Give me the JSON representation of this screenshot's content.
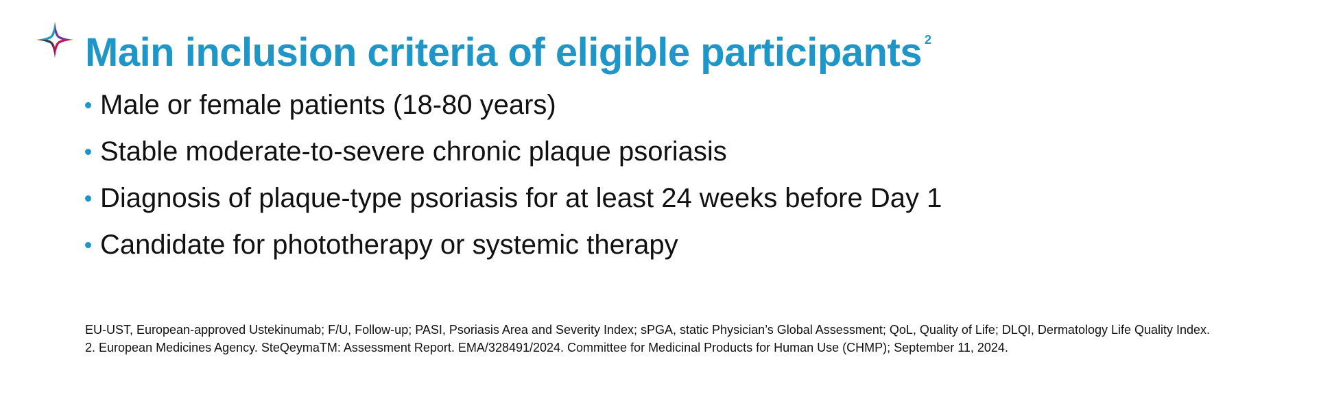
{
  "header": {
    "logo_icon": "four-point-star-logo-icon",
    "title": "Main inclusion criteria of eligible participants",
    "title_ref": "2",
    "title_color": "#1e96c8"
  },
  "criteria": [
    {
      "text": "Male or female patients (18-80 years)"
    },
    {
      "text": "Stable moderate-to-severe chronic plaque psoriasis"
    },
    {
      "text": "Diagnosis of plaque-type psoriasis for at least 24 weeks before Day 1"
    },
    {
      "text": "Candidate for phototherapy or systemic therapy"
    }
  ],
  "footnotes": {
    "abbreviations": "EU-UST, European-approved Ustekinumab; F/U, Follow-up; PASI, Psoriasis Area and Severity Index; sPGA, static Physician’s Global Assessment; QoL, Quality of Life; DLQI, Dermatology Life Quality Index.",
    "reference": "2. European Medicines Agency. SteQeymaTM: Assessment Report. EMA/328491/2024. Committee for Medicinal Products for Human Use (CHMP); September 11, 2024."
  },
  "colors": {
    "accent": "#1e96c8",
    "logo_purple": "#6a3d9a",
    "logo_magenta": "#c2185b",
    "logo_teal": "#1e96c8",
    "logo_dark": "#2f3e4a"
  }
}
